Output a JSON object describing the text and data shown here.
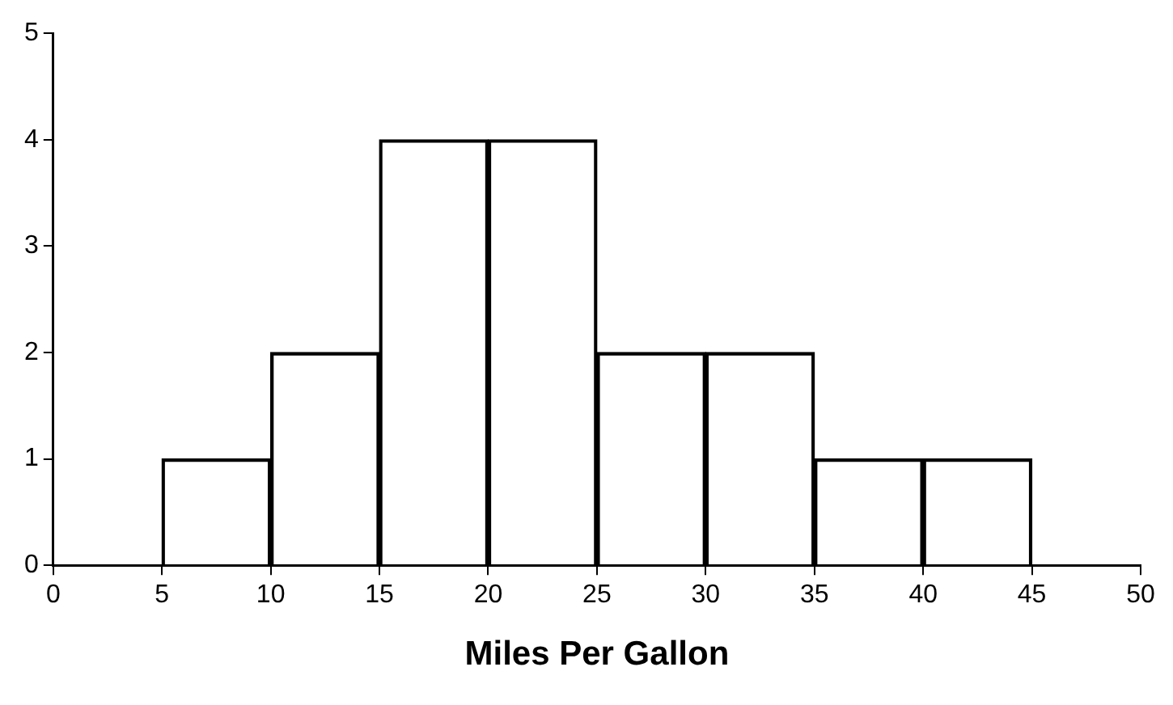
{
  "chart_data": {
    "type": "histogram",
    "xlabel": "Miles Per Gallon",
    "bins": [
      5,
      10,
      15,
      20,
      25,
      30,
      35,
      40,
      45
    ],
    "values": [
      1,
      2,
      4,
      4,
      2,
      2,
      1,
      1
    ],
    "color": "#000000",
    "xlim": [
      0,
      50
    ],
    "xticks": [
      0,
      5,
      10,
      15,
      20,
      25,
      30,
      35,
      40,
      45,
      50
    ],
    "ylim": [
      0,
      5
    ],
    "yticks": [
      0,
      1,
      2,
      3,
      4,
      5
    ]
  }
}
